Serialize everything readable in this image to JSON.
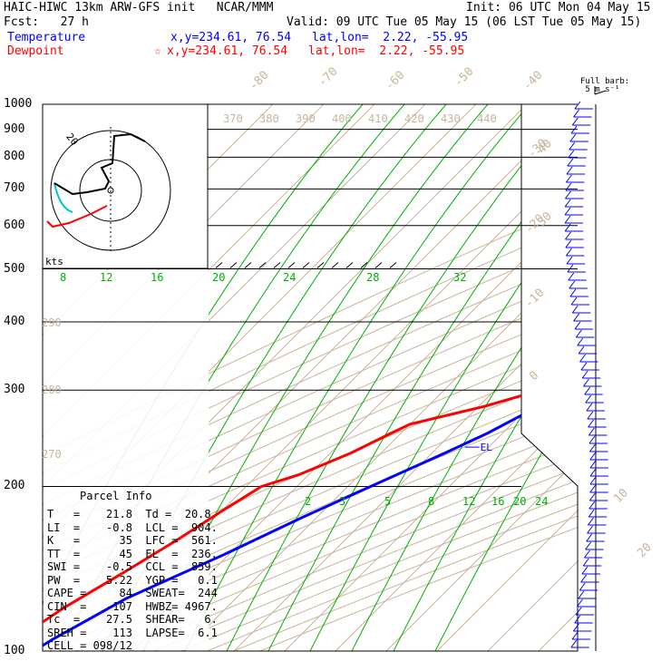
{
  "header": {
    "line1_left": "HAIC-HIWC 13km ARW-GFS init   NCAR/MMM",
    "line1_right": "Init: 06 UTC Mon 04 May 15",
    "line2_left": "Fcst:   27 h",
    "line2_right": "Valid: 09 UTC Tue 05 May 15 (06 LST Tue 05 May 15)",
    "temp_label": "Temperature",
    "temp_xy": "x,y=234.61, 76.54",
    "temp_latlon": "lat,lon=  2.22, -55.95",
    "dew_label": "Dewpoint",
    "dew_star": "☆",
    "dew_xy": "x,y=234.61, 76.54",
    "dew_latlon": "lat,lon=  2.22, -55.95"
  },
  "colors": {
    "temperature": "#0000ff",
    "dewpoint": "#ff0000",
    "isotherm": "#c8b49a",
    "mixing_ratio": "#00b000",
    "hodo_cyan": "#00c8c8",
    "isobar": "#000000"
  },
  "barb_note": "Full barb:\n 5 m s⁻¹",
  "parcel_info": {
    "title": "Parcel Info",
    "rows": [
      "T   =    21.8  Td =  20.8",
      "LI  =    -0.8  LCL =  904.",
      "K   =      35  LFC =  561.",
      "TT  =      45  EL  =  236.",
      "SWI =    -0.5  CCL =  859.",
      "PW  =    5.22  YGP =   0.1",
      "CAPE =     84  SWEAT=  244",
      "CIN  =   -107  HWBZ= 4967.",
      "Tc  =    27.5  SHEAR=   6.",
      "SREH =    113  LAPSE=  6.1",
      "CELL = 098/12"
    ]
  },
  "chart_data": {
    "type": "line",
    "title": "",
    "pressure_levels": [
      "100",
      "200",
      "300",
      "400",
      "500",
      "600",
      "700",
      "800",
      "900",
      "1000"
    ],
    "isotherm_labels": [
      "-80",
      "-70",
      "-60",
      "-50",
      "-40",
      "-30",
      "-20",
      "-10",
      "0",
      "10",
      "20",
      "30",
      "40"
    ],
    "dry_adiabat_labels_top": [
      "370",
      "380",
      "390",
      "400",
      "410",
      "420",
      "430",
      "440"
    ],
    "dry_adiabat_labels_left": [
      "290",
      "280",
      "270"
    ],
    "mixing_ratio_labels_upper": [
      "8",
      "12",
      "16",
      "20",
      "24",
      "28",
      "32"
    ],
    "mixing_ratio_labels_lower": [
      "2",
      "3",
      "5",
      "8",
      "12",
      "16",
      "20",
      "24"
    ],
    "hodograph_ring_label": "20",
    "hodograph_units": "kts",
    "level_markers": [
      {
        "name": "EL",
        "p": 236
      },
      {
        "name": "LFC",
        "p": 561
      },
      {
        "name": "CCL",
        "p": 859
      },
      {
        "name": "LCL",
        "p": 904
      }
    ],
    "series": [
      {
        "name": "Temperature",
        "points": [
          [
            1000,
            24.5
          ],
          [
            975,
            23.5
          ],
          [
            950,
            22.0
          ],
          [
            925,
            21.0
          ],
          [
            900,
            19.5
          ],
          [
            875,
            18.5
          ],
          [
            850,
            17.5
          ],
          [
            825,
            16.5
          ],
          [
            800,
            15.5
          ],
          [
            750,
            13.0
          ],
          [
            700,
            10.0
          ],
          [
            650,
            6.5
          ],
          [
            600,
            3.5
          ],
          [
            560,
            0.5
          ],
          [
            525,
            -1.5
          ],
          [
            500,
            -3.5
          ],
          [
            450,
            -6.5
          ],
          [
            400,
            -11.0
          ],
          [
            350,
            -17.0
          ],
          [
            300,
            -24.5
          ],
          [
            275,
            -29.0
          ],
          [
            250,
            -33.0
          ],
          [
            230,
            -37.5
          ],
          [
            200,
            -45.5
          ],
          [
            175,
            -53.0
          ],
          [
            150,
            -61.0
          ],
          [
            125,
            -71.5
          ],
          [
            105,
            -78.0
          ],
          [
            100,
            -79.5
          ]
        ]
      },
      {
        "name": "Dewpoint",
        "points": [
          [
            1000,
            23.5
          ],
          [
            975,
            22.0
          ],
          [
            950,
            21.0
          ],
          [
            925,
            19.5
          ],
          [
            900,
            18.5
          ],
          [
            875,
            17.5
          ],
          [
            850,
            16.5
          ],
          [
            825,
            15.5
          ],
          [
            800,
            14.5
          ],
          [
            775,
            13.0
          ],
          [
            750,
            12.0
          ],
          [
            700,
            8.5
          ],
          [
            675,
            6.0
          ],
          [
            650,
            4.5
          ],
          [
            600,
            1.0
          ],
          [
            575,
            0.5
          ],
          [
            550,
            -1.0
          ],
          [
            525,
            -3.5
          ],
          [
            500,
            -5.0
          ],
          [
            475,
            -8.0
          ],
          [
            450,
            -10.5
          ],
          [
            425,
            -13.0
          ],
          [
            400,
            -17.5
          ],
          [
            375,
            -21.0
          ],
          [
            350,
            -26.5
          ],
          [
            320,
            -28.0
          ],
          [
            300,
            -31.0
          ],
          [
            280,
            -39.0
          ],
          [
            260,
            -50.0
          ],
          [
            250,
            -52.0
          ],
          [
            230,
            -56.0
          ],
          [
            210,
            -62.0
          ],
          [
            200,
            -67.0
          ],
          [
            180,
            -70.0
          ],
          [
            160,
            -73.0
          ],
          [
            140,
            -77.0
          ],
          [
            120,
            -82.0
          ],
          [
            110,
            -84.0
          ],
          [
            100,
            -86.0
          ]
        ]
      }
    ]
  }
}
